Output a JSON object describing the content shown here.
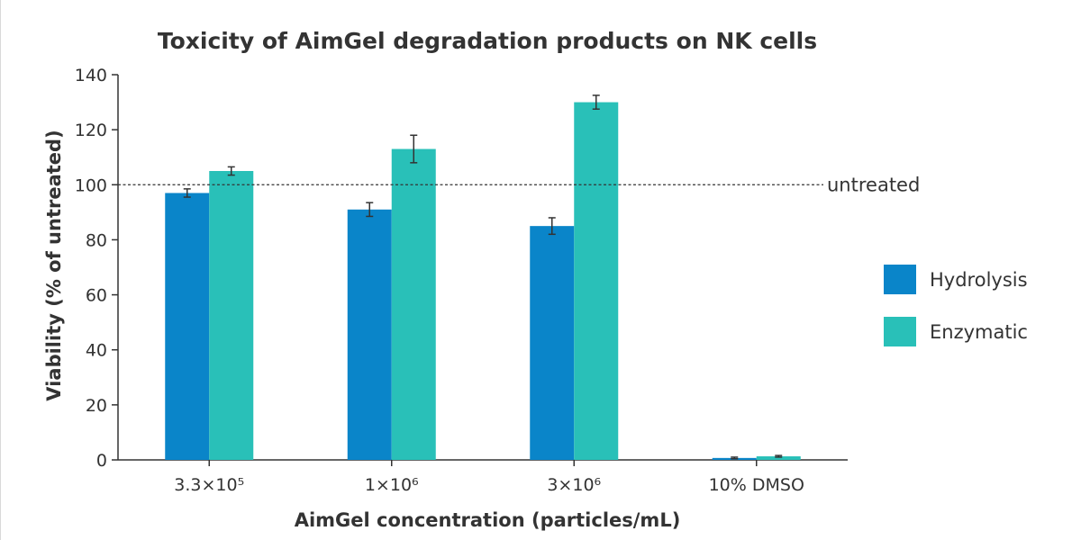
{
  "chart_data": {
    "type": "bar",
    "title": "Toxicity of AimGel degradation products on NK cells",
    "xlabel": "AimGel concentration (particles/mL)",
    "ylabel": "Viability (% of untreated)",
    "categories": [
      "3.3×10⁵",
      "1×10⁶",
      "3×10⁶",
      "10% DMSO"
    ],
    "series": [
      {
        "name": "Hydrolysis",
        "color": "#0a85c9",
        "values": [
          97,
          91,
          85,
          0.7
        ],
        "errors": [
          1.5,
          2.5,
          3,
          0.3
        ]
      },
      {
        "name": "Enzymatic",
        "color": "#29c0b8",
        "values": [
          105,
          113,
          130,
          1.3
        ],
        "errors": [
          1.5,
          5,
          2.5,
          0.3
        ]
      }
    ],
    "ylim": [
      0,
      140
    ],
    "yticks": [
      0,
      20,
      40,
      60,
      80,
      100,
      120,
      140
    ],
    "reference_line": {
      "value": 100,
      "label": "untreated"
    },
    "legend_position": "right",
    "grid": false
  }
}
